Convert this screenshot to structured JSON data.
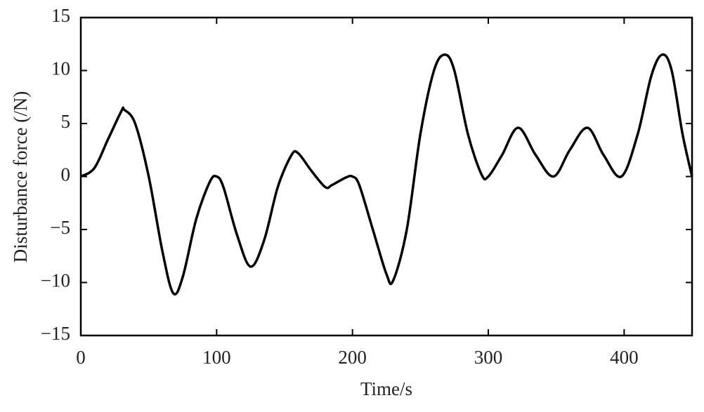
{
  "chart_data": {
    "type": "line",
    "x_label": "Time/s",
    "y_label": "Disturbance force (/N)",
    "x": [
      0,
      10,
      20,
      30,
      32,
      40,
      50,
      60,
      68,
      75,
      85,
      95,
      100,
      105,
      115,
      125,
      135,
      145,
      155,
      160,
      170,
      180,
      185,
      195,
      200,
      205,
      215,
      225,
      230,
      240,
      250,
      260,
      268,
      275,
      285,
      295,
      300,
      310,
      322,
      335,
      348,
      360,
      373,
      385,
      398,
      410,
      420,
      428,
      435,
      443,
      450
    ],
    "values": [
      0,
      0.8,
      3.5,
      6.2,
      6.3,
      5,
      0,
      -7,
      -11,
      -9.5,
      -4,
      -0.5,
      0,
      -1,
      -5.5,
      -8.5,
      -6,
      -1,
      2,
      2.2,
      0.5,
      -1,
      -0.8,
      -0.1,
      0,
      -0.8,
      -5,
      -9.2,
      -9.8,
      -5,
      4,
      10,
      11.5,
      10,
      4,
      0.2,
      0,
      2,
      4.6,
      2,
      0,
      2.5,
      4.6,
      2,
      0,
      4,
      9.5,
      11.5,
      10,
      4,
      0
    ],
    "color": "#000000",
    "xlim": [
      0,
      450
    ],
    "xticks": [
      0,
      100,
      200,
      300,
      400
    ],
    "ylim": [
      -15,
      15
    ],
    "yticks": [
      {
        "value": -15,
        "label": "−15"
      },
      {
        "value": -10,
        "label": "−10"
      },
      {
        "value": -5,
        "label": "−5"
      },
      0,
      5,
      10,
      15
    ]
  }
}
